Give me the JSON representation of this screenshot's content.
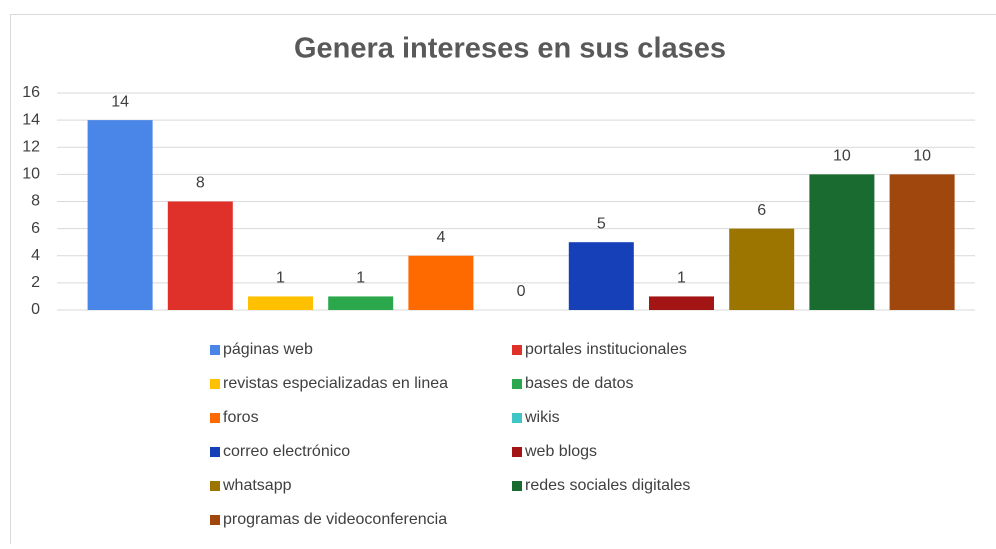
{
  "chart_data": {
    "type": "bar",
    "title": "Genera intereses en sus clases",
    "categories": [
      "páginas web",
      "portales institucionales",
      "revistas especializadas en linea",
      "bases de datos",
      "foros",
      "wikis",
      "correo electrónico",
      "web blogs",
      "whatsapp",
      "redes sociales digitales",
      "programas de videoconferencia"
    ],
    "values": [
      14,
      8,
      1,
      1,
      4,
      0,
      5,
      1,
      6,
      10,
      10
    ],
    "colors": [
      "#4a86e8",
      "#e0302a",
      "#ffc000",
      "#2ca84c",
      "#ff6a00",
      "#3fc5c5",
      "#1540b8",
      "#a31515",
      "#9c7400",
      "#1a6b30",
      "#a0470e"
    ],
    "ylim": [
      0,
      16
    ],
    "yticks": [
      0,
      2,
      4,
      6,
      8,
      10,
      12,
      14,
      16
    ],
    "grid": true,
    "legend": "bottom"
  }
}
